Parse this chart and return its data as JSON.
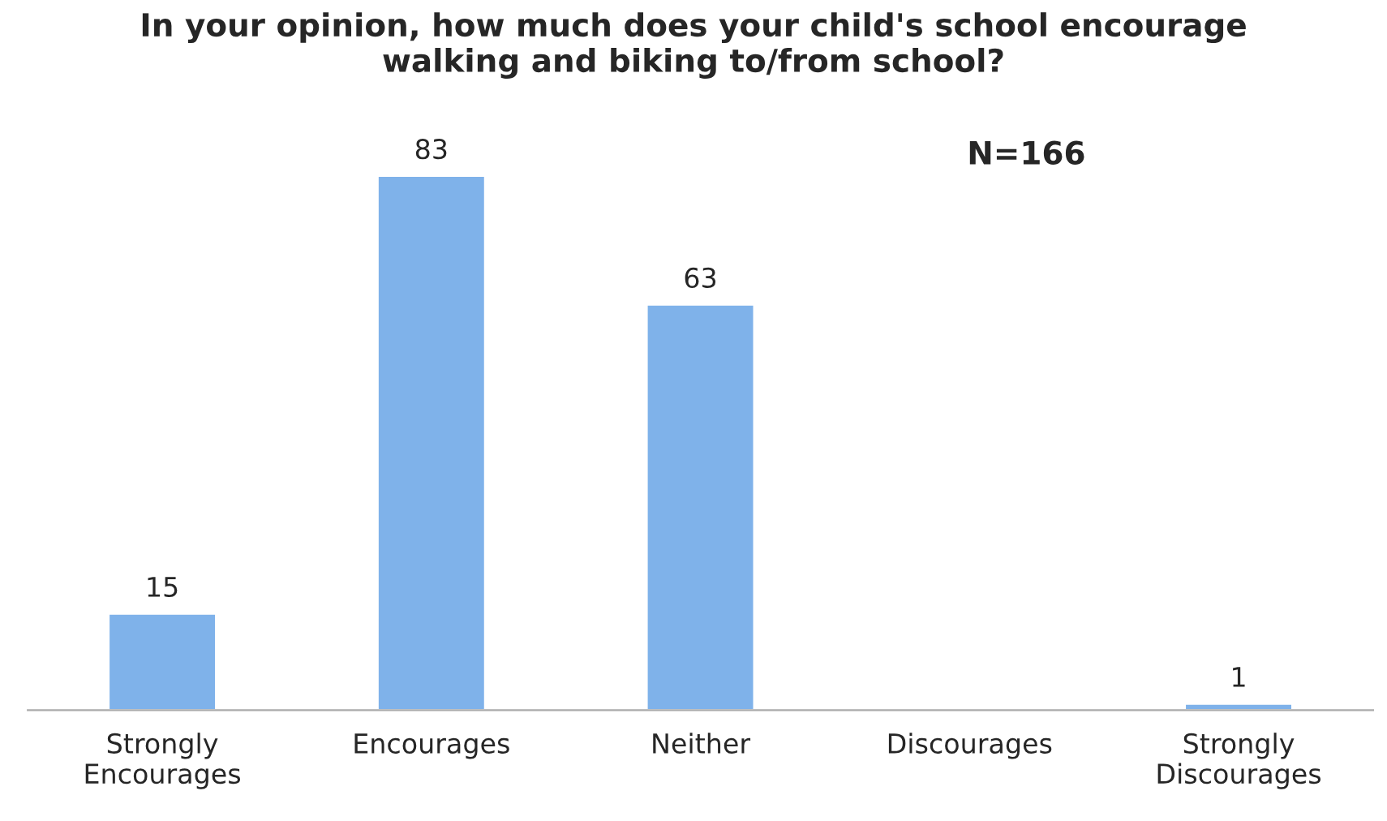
{
  "chart_data": {
    "type": "bar",
    "title": "In your opinion, how much does your child's school encourage\nwalking and biking to/from school?",
    "categories": [
      "Strongly\nEncourages",
      "Encourages",
      "Neither",
      "Discourages",
      "Strongly\nDiscourages"
    ],
    "values": [
      15,
      83,
      63,
      null,
      1
    ],
    "value_labels": [
      "15",
      "83",
      "63",
      null,
      "1"
    ],
    "color": "#7fb2ea",
    "annotations": [
      "N=166"
    ],
    "grid": false,
    "legend": false
  }
}
